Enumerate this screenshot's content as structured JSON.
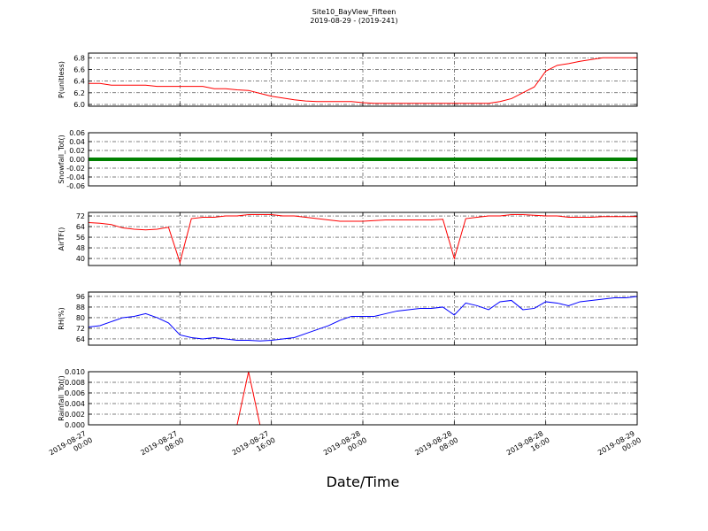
{
  "figure": {
    "title": "Site10_BayView_Fifteen",
    "subtitle": "2019-08-29 - (2019-241)",
    "xlabel": "Date/Time",
    "xlim": [
      "2019-08-27 00:00",
      "2019-08-29 00:00"
    ],
    "xticks": [
      "2019-08-27 00:00",
      "2019-08-27 08:00",
      "2019-08-27 16:00",
      "2019-08-28 00:00",
      "2019-08-28 08:00",
      "2019-08-28 16:00",
      "2019-08-29 00:00"
    ],
    "x": [
      "2019-08-27 00:00",
      "2019-08-27 01:00",
      "2019-08-27 02:00",
      "2019-08-27 03:00",
      "2019-08-27 04:00",
      "2019-08-27 05:00",
      "2019-08-27 06:00",
      "2019-08-27 07:00",
      "2019-08-27 08:00",
      "2019-08-27 09:00",
      "2019-08-27 10:00",
      "2019-08-27 11:00",
      "2019-08-27 12:00",
      "2019-08-27 13:00",
      "2019-08-27 14:00",
      "2019-08-27 15:00",
      "2019-08-27 16:00",
      "2019-08-27 17:00",
      "2019-08-27 18:00",
      "2019-08-27 19:00",
      "2019-08-27 20:00",
      "2019-08-27 21:00",
      "2019-08-27 22:00",
      "2019-08-27 23:00",
      "2019-08-28 00:00",
      "2019-08-28 01:00",
      "2019-08-28 02:00",
      "2019-08-28 03:00",
      "2019-08-28 04:00",
      "2019-08-28 05:00",
      "2019-08-28 06:00",
      "2019-08-28 07:00",
      "2019-08-28 08:00",
      "2019-08-28 09:00",
      "2019-08-28 10:00",
      "2019-08-28 11:00",
      "2019-08-28 12:00",
      "2019-08-28 13:00",
      "2019-08-28 14:00",
      "2019-08-28 15:00",
      "2019-08-28 16:00",
      "2019-08-28 17:00",
      "2019-08-28 18:00",
      "2019-08-28 19:00",
      "2019-08-28 20:00",
      "2019-08-28 21:00",
      "2019-08-28 22:00",
      "2019-08-28 23:00",
      "2019-08-29 00:00"
    ]
  },
  "chart_data": [
    {
      "type": "line",
      "ylabel": "P(unitless)",
      "ylim": [
        5.97,
        6.88
      ],
      "yticks": [
        {
          "value": 6.0,
          "label": "6.0"
        },
        6.2,
        6.4,
        6.6,
        6.8
      ],
      "grid": true,
      "series": [
        {
          "name": "P",
          "color": "#ff0000",
          "width": 1,
          "values": [
            6.36,
            6.36,
            6.33,
            6.33,
            6.33,
            6.33,
            6.31,
            6.31,
            6.31,
            6.31,
            6.31,
            6.27,
            6.27,
            6.25,
            6.24,
            6.19,
            6.14,
            6.11,
            6.08,
            6.06,
            6.05,
            6.05,
            6.05,
            6.05,
            6.03,
            6.02,
            6.02,
            6.02,
            6.02,
            6.02,
            6.02,
            6.02,
            6.02,
            6.02,
            6.02,
            6.02,
            6.05,
            6.1,
            6.2,
            6.3,
            6.57,
            6.67,
            6.7,
            6.74,
            6.77,
            6.8,
            6.8,
            6.8,
            6.8
          ]
        }
      ]
    },
    {
      "type": "line",
      "ylabel": "Snowfall_Tot()",
      "ylim": [
        -0.06,
        0.06
      ],
      "yticks": [
        -0.06,
        -0.04,
        -0.02,
        {
          "value": 0,
          "label": "0.00"
        },
        0.02,
        0.04,
        0.06
      ],
      "grid": true,
      "series": [
        {
          "name": "Snowfall_Tot",
          "color": "#008000",
          "width": 4,
          "values": [
            0,
            0,
            0,
            0,
            0,
            0,
            0,
            0,
            0,
            0,
            0,
            0,
            0,
            0,
            0,
            0,
            0,
            0,
            0,
            0,
            0,
            0,
            0,
            0,
            0,
            0,
            0,
            0,
            0,
            0,
            0,
            0,
            0,
            0,
            0,
            0,
            0,
            0,
            0,
            0,
            0,
            0,
            0,
            0,
            0,
            0,
            0,
            0,
            0
          ]
        }
      ]
    },
    {
      "type": "line",
      "ylabel": "AirTF()",
      "ylim": [
        34.7,
        74.7
      ],
      "yticks": [
        40,
        48,
        56,
        64,
        72
      ],
      "grid": true,
      "series": [
        {
          "name": "AirTF",
          "color": "#ff0000",
          "width": 1,
          "values": [
            67,
            66.5,
            65.5,
            63,
            62,
            61.5,
            62,
            63.5,
            37,
            70,
            71,
            71,
            72,
            72,
            73,
            73,
            73,
            72,
            72,
            71,
            70,
            69,
            68,
            68,
            68,
            68.5,
            69,
            69,
            69,
            69,
            69,
            69.5,
            40,
            70,
            71,
            72,
            72,
            73,
            73,
            72.5,
            72,
            72,
            71,
            71,
            71,
            71.5,
            71.5,
            71.5,
            71.5
          ]
        }
      ]
    },
    {
      "type": "line",
      "ylabel": "RH(%)",
      "ylim": [
        59.3,
        99.3
      ],
      "yticks": [
        64,
        72,
        80,
        88,
        96
      ],
      "grid": true,
      "series": [
        {
          "name": "RH",
          "color": "#0000ff",
          "width": 1,
          "values": [
            73,
            74,
            77,
            80,
            81,
            83,
            80,
            76,
            67,
            65,
            64,
            65,
            64,
            63,
            63,
            62.5,
            63,
            64,
            65,
            68,
            71,
            74,
            78,
            81,
            81,
            81,
            83,
            85,
            86,
            87,
            87,
            88,
            82,
            91,
            89,
            86,
            92,
            93,
            86,
            87,
            92,
            91,
            89,
            92,
            93,
            94,
            95,
            95,
            96
          ]
        }
      ]
    },
    {
      "type": "line",
      "ylabel": "Rainfall_Tot()",
      "ylim": [
        0,
        0.01
      ],
      "yticks": [
        {
          "value": 0,
          "label": "0.000"
        },
        {
          "value": 0.002,
          "label": "0.002"
        },
        {
          "value": 0.004,
          "label": "0.004"
        },
        {
          "value": 0.006,
          "label": "0.006"
        },
        {
          "value": 0.008,
          "label": "0.008"
        },
        {
          "value": 0.01,
          "label": "0.010"
        }
      ],
      "grid": true,
      "series": [
        {
          "name": "Rainfall_Tot",
          "color": "#ff0000",
          "width": 1,
          "values": [
            0,
            0,
            0,
            0,
            0,
            0,
            0,
            0,
            0,
            0,
            0,
            0,
            0,
            0,
            0.01,
            0,
            0,
            0,
            0,
            0,
            0,
            0,
            0,
            0,
            0,
            0,
            0,
            0,
            0,
            0,
            0,
            0,
            0,
            0,
            0,
            0,
            0,
            0,
            0,
            0,
            0,
            0,
            0,
            0,
            0,
            0,
            0,
            0,
            0
          ]
        }
      ]
    }
  ]
}
